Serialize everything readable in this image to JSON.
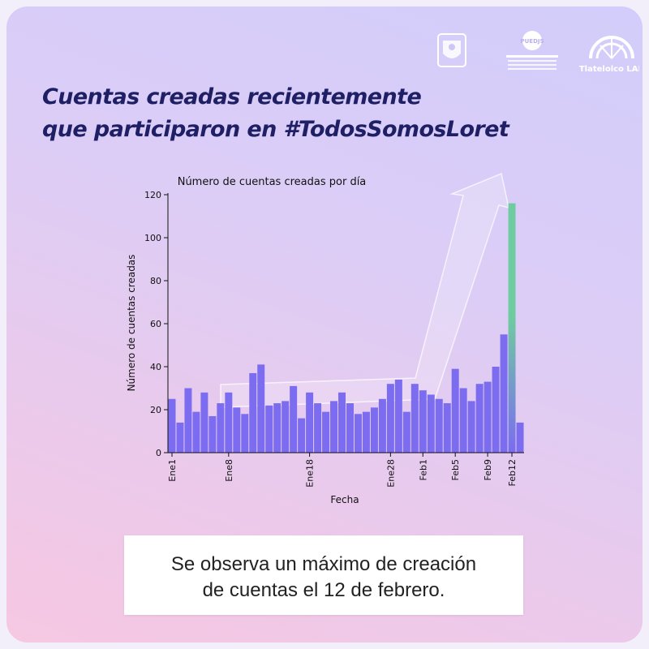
{
  "headline": {
    "line1": "Cuentas creadas recientemente",
    "line2": "que participaron en #TodosSomosLoret"
  },
  "logos": [
    {
      "icon": "unam-seal-icon",
      "text": ""
    },
    {
      "icon": "puedjs-logo-icon",
      "text": "PUEDJS"
    },
    {
      "icon": "tlatelolco-lab-logo-icon",
      "text": "Tlatelolco LAB"
    }
  ],
  "colors": {
    "bar": "#7b6cf0",
    "highlight_top": "#6fcca0",
    "headline": "#1f1f66"
  },
  "chart_data": {
    "type": "bar",
    "title": "Número de cuentas creadas por día",
    "xlabel": "Fecha",
    "ylabel": "Número de cuentas creadas",
    "ylim": [
      0,
      120
    ],
    "yticks": [
      0,
      20,
      40,
      60,
      80,
      100,
      120
    ],
    "xticks": [
      {
        "label": "Ene1",
        "index": 0
      },
      {
        "label": "Ene8",
        "index": 7
      },
      {
        "label": "Ene18",
        "index": 17
      },
      {
        "label": "Ene28",
        "index": 27
      },
      {
        "label": "Feb1",
        "index": 31
      },
      {
        "label": "Feb5",
        "index": 35
      },
      {
        "label": "Feb9",
        "index": 39
      },
      {
        "label": "Feb12",
        "index": 42
      }
    ],
    "values": [
      25,
      14,
      30,
      19,
      28,
      17,
      23,
      28,
      21,
      18,
      37,
      41,
      22,
      23,
      24,
      31,
      16,
      28,
      23,
      19,
      24,
      28,
      23,
      18,
      19,
      21,
      25,
      32,
      34,
      19,
      32,
      29,
      27,
      25,
      23,
      39,
      30,
      24,
      32,
      33,
      40,
      55,
      116,
      14
    ],
    "highlight_index": 42,
    "annotation": "trend-arrow",
    "grid": false,
    "legend": "none"
  },
  "note": {
    "line1": "Se observa un máximo de creación",
    "line2": "de cuentas el 12 de febrero."
  }
}
